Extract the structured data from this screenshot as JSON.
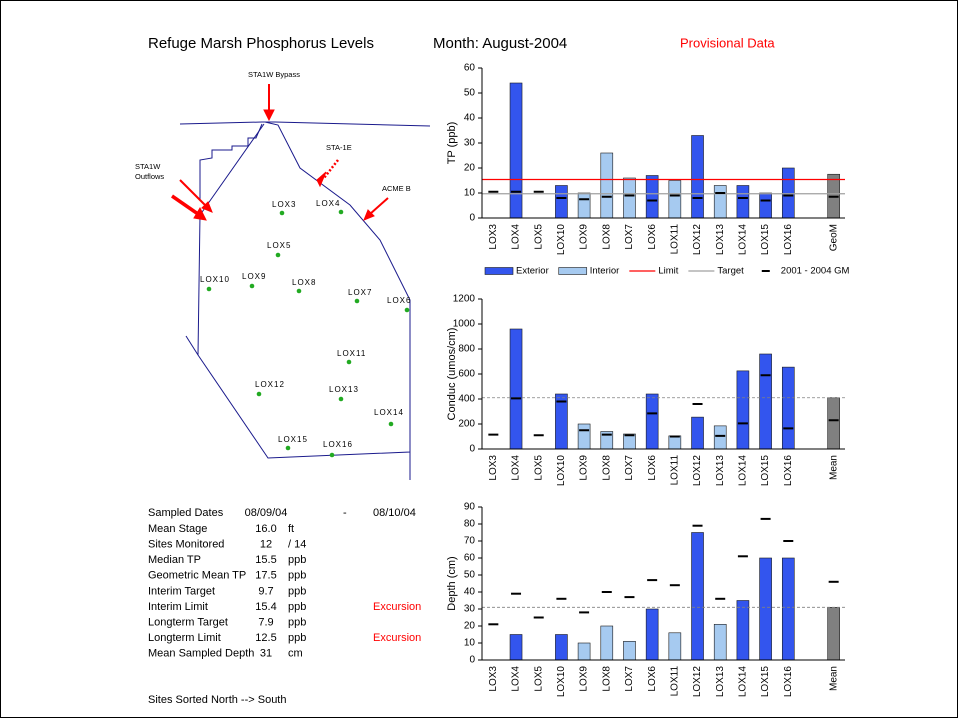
{
  "header": {
    "title": "Refuge Marsh Phosphorus Levels",
    "month": "Month:  August-2004",
    "status": "Provisional Data"
  },
  "map": {
    "labels": [
      "STA1W Bypass",
      "STA-1E",
      "ACME B",
      "STA1W",
      "Outflows"
    ],
    "sites": [
      "LOX3",
      "LOX4",
      "LOX5",
      "LOX10",
      "LOX9",
      "LOX8",
      "LOX7",
      "LOX6",
      "LOX11",
      "LOX12",
      "LOX13",
      "LOX14",
      "LOX15",
      "LOX16"
    ]
  },
  "stats": {
    "sampled_dates": {
      "label": "Sampled Dates",
      "from": "08/09/04",
      "separator": "-",
      "to": "08/10/04"
    },
    "rows": [
      [
        "Mean Stage",
        "16.0",
        "ft"
      ],
      [
        "Sites Monitored",
        "12",
        "/ 14"
      ],
      [
        "Median TP",
        "15.5",
        "ppb"
      ],
      [
        "Geometric Mean TP",
        "17.5",
        "ppb"
      ],
      [
        "Interim Target",
        "9.7",
        "ppb"
      ],
      [
        "Interim Limit",
        "15.4",
        "ppb",
        "Excursion"
      ],
      [
        "Longterm Target",
        "7.9",
        "ppb"
      ],
      [
        "Longterm Limit",
        "12.5",
        "ppb",
        "Excursion"
      ],
      [
        "Mean Sampled Depth",
        "31",
        "cm"
      ]
    ]
  },
  "footer": "Sites Sorted North --> South",
  "chart_data": [
    {
      "type": "bar",
      "y_label": "TP (ppb)",
      "categories": [
        "LOX3",
        "LOX4",
        "LOX5",
        "LOX10",
        "LOX9",
        "LOX8",
        "LOX7",
        "LOX6",
        "LOX11",
        "LOX12",
        "LOX13",
        "LOX14",
        "LOX15",
        "LOX16",
        null,
        "GeoM"
      ],
      "series": [
        {
          "name": "Exterior",
          "color": "#3355ee",
          "values": [
            null,
            54,
            null,
            13,
            null,
            null,
            null,
            17,
            null,
            33,
            null,
            13,
            10,
            20,
            null,
            null
          ]
        },
        {
          "name": "Interior",
          "color": "#a6caf0",
          "values": [
            null,
            null,
            null,
            null,
            10,
            26,
            16,
            null,
            15,
            null,
            13,
            null,
            null,
            null,
            null,
            null
          ]
        },
        {
          "color": "#808080",
          "values": [
            null,
            null,
            null,
            null,
            null,
            null,
            null,
            null,
            null,
            null,
            null,
            null,
            null,
            null,
            null,
            17.5
          ]
        }
      ],
      "reference_lines": [
        {
          "name": "Limit",
          "value": 15.4,
          "color": "#ff0000"
        },
        {
          "name": "Target",
          "value": 9.7,
          "color": "#a0a0a0"
        }
      ],
      "markers": {
        "name": "2001 - 2004 GM",
        "color": "#000000",
        "values": [
          10.5,
          10.5,
          10.5,
          8,
          7.5,
          8.5,
          9,
          7,
          9,
          8,
          10,
          8,
          7,
          9,
          null,
          8.5
        ]
      },
      "ylim": [
        0,
        60
      ],
      "yticks": [
        0,
        10,
        20,
        30,
        40,
        50,
        60
      ],
      "legend": "bottom"
    },
    {
      "type": "bar",
      "y_label": "Conduc (umos/cm)",
      "categories": [
        "LOX3",
        "LOX4",
        "LOX5",
        "LOX10",
        "LOX9",
        "LOX8",
        "LOX7",
        "LOX6",
        "LOX11",
        "LOX12",
        "LOX13",
        "LOX14",
        "LOX15",
        "LOX16",
        null,
        "Mean"
      ],
      "series": [
        {
          "color": "#3355ee",
          "values": [
            null,
            960,
            null,
            440,
            null,
            null,
            null,
            440,
            null,
            255,
            null,
            625,
            760,
            655,
            null,
            null
          ]
        },
        {
          "color": "#a6caf0",
          "values": [
            null,
            null,
            null,
            null,
            200,
            140,
            120,
            null,
            105,
            null,
            185,
            null,
            null,
            null,
            null,
            null
          ]
        },
        {
          "color": "#808080",
          "values": [
            null,
            null,
            null,
            null,
            null,
            null,
            null,
            null,
            null,
            null,
            null,
            null,
            null,
            null,
            null,
            410
          ]
        }
      ],
      "reference_lines": [
        {
          "value": 410,
          "color": "#808080",
          "dash": true
        }
      ],
      "markers": {
        "color": "#000000",
        "values": [
          115,
          405,
          110,
          380,
          150,
          115,
          110,
          285,
          100,
          360,
          105,
          205,
          590,
          165,
          null,
          230
        ]
      },
      "ylim": [
        0,
        1200
      ],
      "yticks": [
        0,
        200,
        400,
        600,
        800,
        1000,
        1200
      ]
    },
    {
      "type": "bar",
      "y_label": "Depth (cm)",
      "categories": [
        "LOX3",
        "LOX4",
        "LOX5",
        "LOX10",
        "LOX9",
        "LOX8",
        "LOX7",
        "LOX6",
        "LOX11",
        "LOX12",
        "LOX13",
        "LOX14",
        "LOX15",
        "LOX16",
        null,
        "Mean"
      ],
      "series": [
        {
          "color": "#3355ee",
          "values": [
            null,
            15,
            null,
            15,
            null,
            null,
            null,
            30,
            null,
            75,
            null,
            35,
            60,
            60,
            null,
            null
          ]
        },
        {
          "color": "#a6caf0",
          "values": [
            null,
            null,
            null,
            null,
            10,
            20,
            11,
            null,
            16,
            null,
            21,
            null,
            null,
            null,
            null,
            null
          ]
        },
        {
          "color": "#808080",
          "values": [
            null,
            null,
            null,
            null,
            null,
            null,
            null,
            null,
            null,
            null,
            null,
            null,
            null,
            null,
            null,
            31
          ]
        }
      ],
      "reference_lines": [
        {
          "value": 31,
          "color": "#808080",
          "dash": true
        }
      ],
      "markers": {
        "color": "#000000",
        "values": [
          21,
          39,
          25,
          36,
          28,
          40,
          37,
          47,
          44,
          79,
          36,
          61,
          83,
          70,
          null,
          46
        ]
      },
      "ylim": [
        0,
        90
      ],
      "yticks": [
        0,
        10,
        20,
        30,
        40,
        50,
        60,
        70,
        80,
        90
      ]
    }
  ]
}
